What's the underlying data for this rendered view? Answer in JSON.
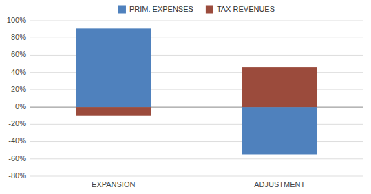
{
  "chart_data": {
    "type": "bar",
    "categories": [
      "EXPANSION",
      "ADJUSTMENT"
    ],
    "series": [
      {
        "name": "PRIM. EXPENSES",
        "color": "#4F81BD",
        "values": [
          91,
          -55
        ]
      },
      {
        "name": "TAX REVENUES",
        "color": "#9B4B3C",
        "values": [
          -10,
          46
        ]
      }
    ],
    "ylim": [
      -80,
      100
    ],
    "yticks": [
      {
        "value": -80,
        "label": "-80%"
      },
      {
        "value": -60,
        "label": "-60%"
      },
      {
        "value": -40,
        "label": "-40%"
      },
      {
        "value": -20,
        "label": "-20%"
      },
      {
        "value": 0,
        "label": "0%"
      },
      {
        "value": 20,
        "label": "20%"
      },
      {
        "value": 40,
        "label": "40%"
      },
      {
        "value": 60,
        "label": "60%"
      },
      {
        "value": 80,
        "label": "80%"
      },
      {
        "value": 100,
        "label": "100%"
      }
    ],
    "grid": true,
    "legend": "top"
  }
}
